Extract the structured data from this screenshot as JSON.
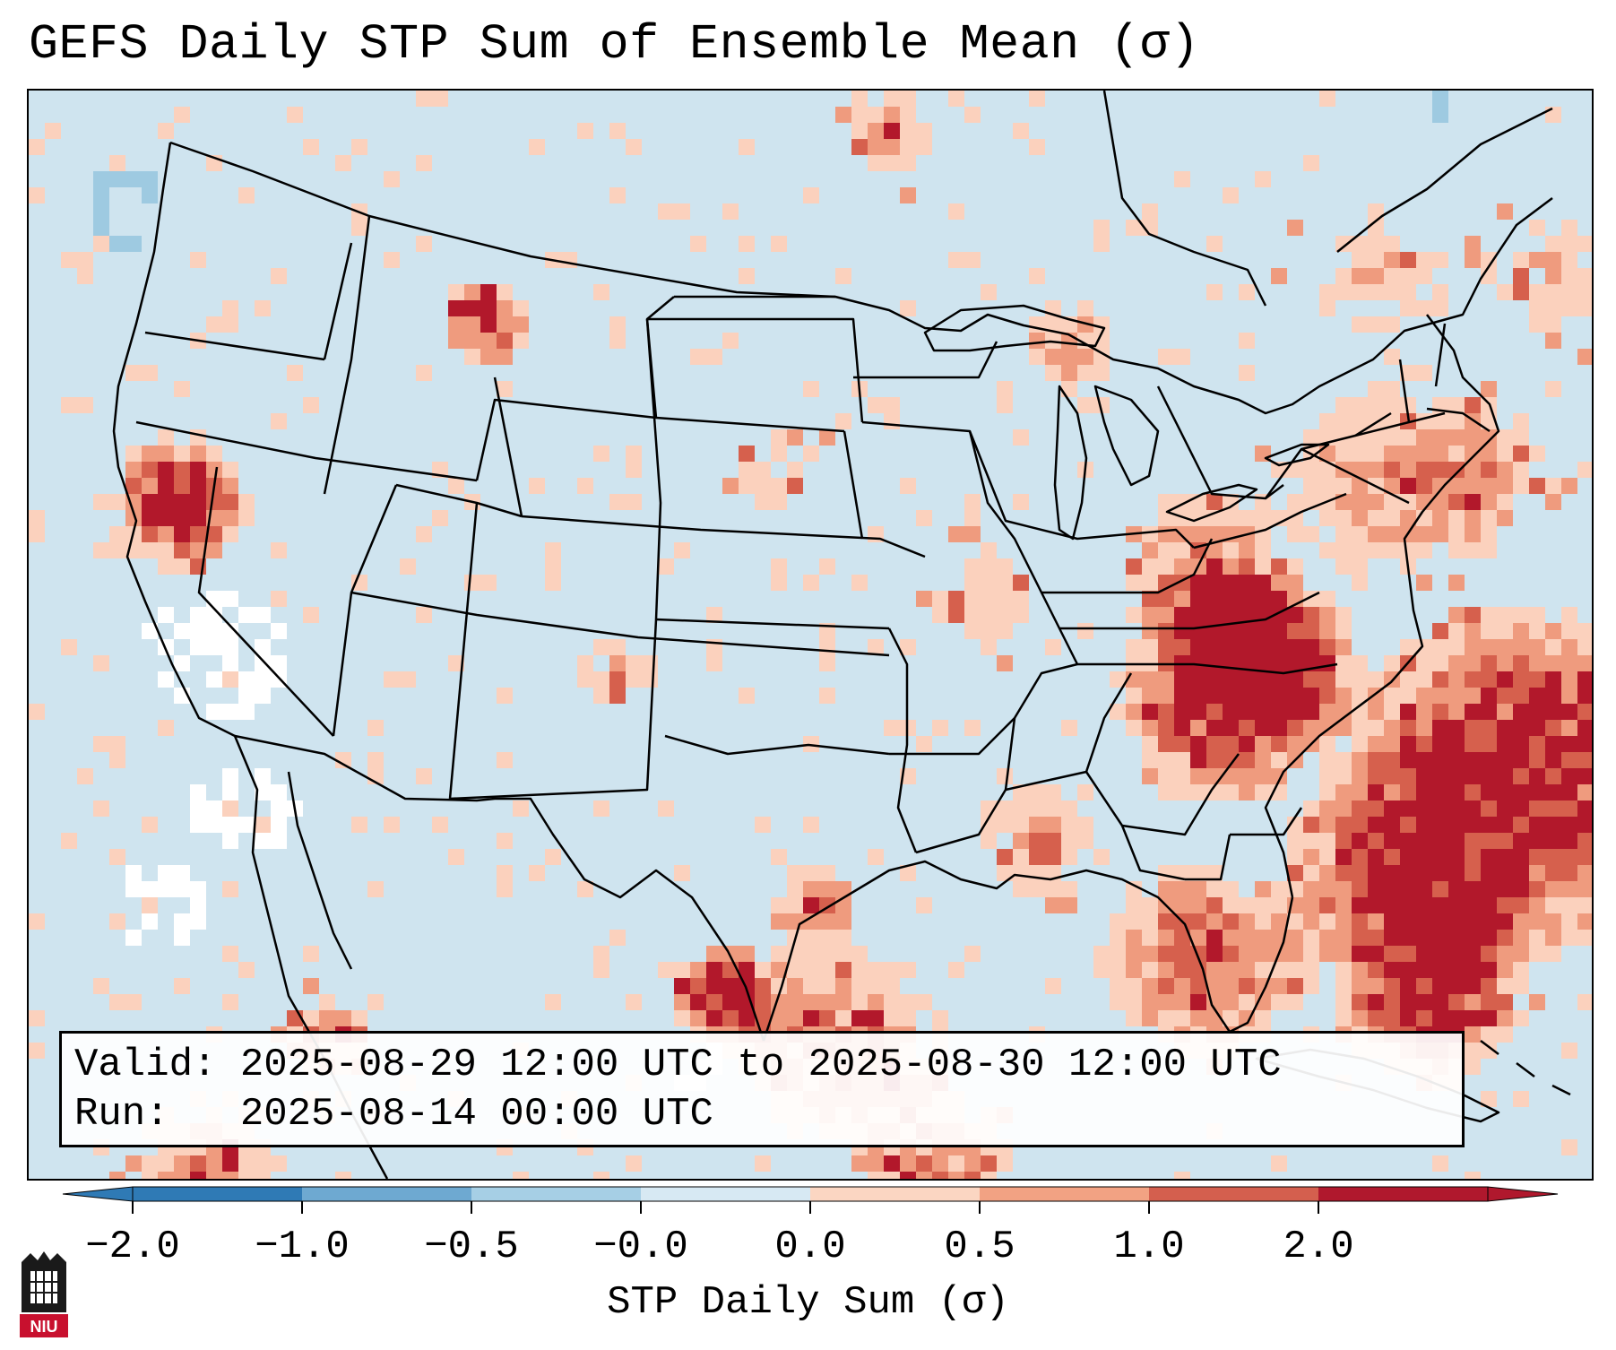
{
  "title": "GEFS Daily STP Sum of Ensemble Mean (σ)",
  "info": {
    "valid_label": "Valid:",
    "valid_value": "2025-08-29 12:00 UTC to 2025-08-30 12:00 UTC",
    "run_label": "Run:",
    "run_value": "2025-08-14 00:00 UTC"
  },
  "colorbar": {
    "label": "STP Daily Sum (σ)",
    "ticks": [
      "−2.0",
      "−1.0",
      "−0.5",
      "−0.0",
      "0.0",
      "0.5",
      "1.0",
      "2.0"
    ],
    "bin_colors": [
      "#2f7ab5",
      "#6ea9d1",
      "#a6cfe5",
      "#d7e9f3",
      "#fbd6c2",
      "#f2a283",
      "#d45f4e",
      "#b0182d"
    ]
  },
  "map_colors": {
    "background": "#cfe4ef",
    "light_red": "#fbd1bd",
    "mid_red": "#ef9b7e",
    "red": "#d6604d",
    "dark_red": "#b2182b",
    "light_blue": "#9ecae1",
    "white": "#ffffff"
  },
  "logo": {
    "text": "NIU"
  },
  "chart_data": {
    "type": "heatmap",
    "title": "GEFS Daily STP Sum of Ensemble Mean (σ)",
    "variable": "STP Daily Sum (σ)",
    "color_bins": [
      -2.0,
      -1.0,
      -0.5,
      -0.0,
      0.0,
      0.5,
      1.0,
      2.0
    ],
    "extend": "both",
    "region": "Continental United States",
    "notable_maxima": [
      "Kentucky / Tennessee / Virginia (> 2.0)",
      "Western Atlantic off the Carolinas (> 2.0)",
      "Northern California coast (> 2.0)",
      "Western Montana (1.0–2.0)"
    ]
  }
}
